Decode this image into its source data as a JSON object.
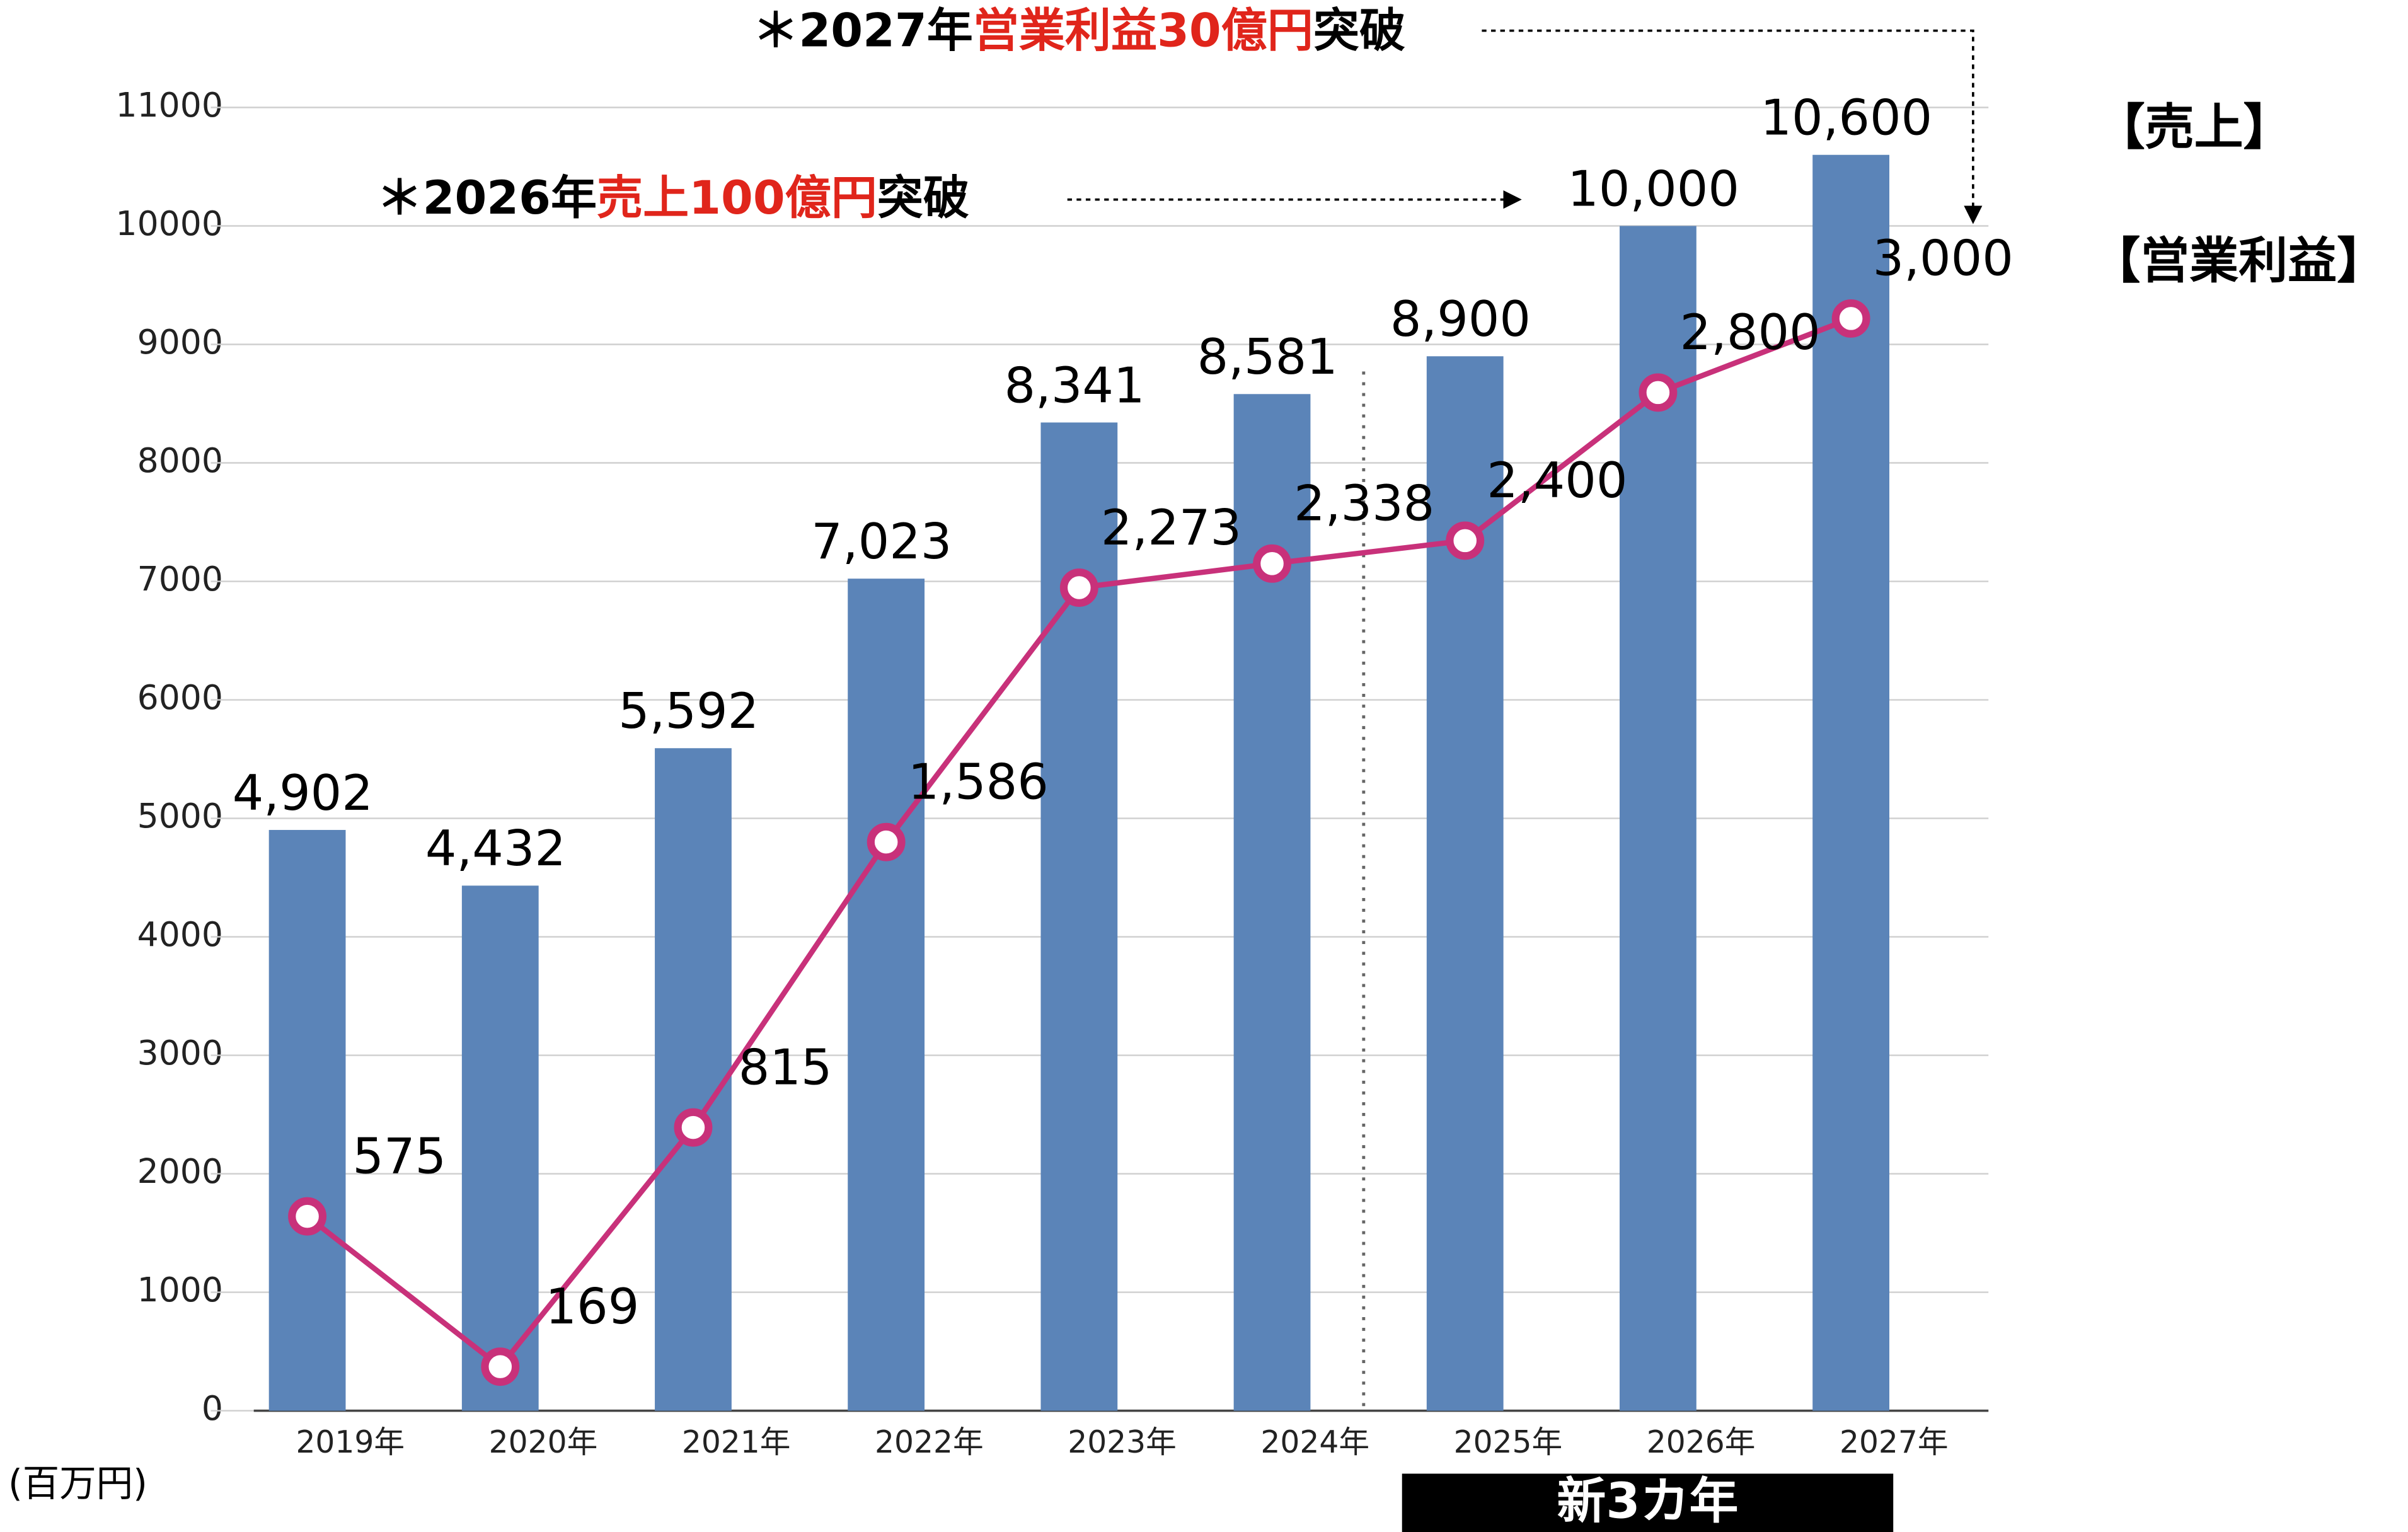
{
  "chart_data": {
    "type": "bar",
    "categories": [
      "2019年",
      "2020年",
      "2021年",
      "2022年",
      "2023年",
      "2024年",
      "2025年",
      "2026年",
      "2027年"
    ],
    "series": [
      {
        "name": "【売上】",
        "type": "bar",
        "color": "#5b84b8",
        "values": [
          4902,
          4432,
          5592,
          7023,
          8341,
          8581,
          8900,
          10000,
          10600
        ],
        "value_labels": [
          "4,902",
          "4,432",
          "5,592",
          "7,023",
          "8,341",
          "8,581",
          "8,900",
          "10,000",
          "10,600"
        ]
      },
      {
        "name": "【営業利益】",
        "type": "line",
        "axis": "y2",
        "color": "#c8317a",
        "values": [
          575,
          169,
          815,
          1586,
          2273,
          2338,
          2400,
          2800,
          3000
        ],
        "value_labels": [
          "575",
          "169",
          "815",
          "1,586",
          "2,273",
          "2,338",
          "2,400",
          "2,800",
          "3,000"
        ]
      }
    ],
    "ylim": [
      0,
      11000
    ],
    "yticks": [
      0,
      1000,
      2000,
      3000,
      4000,
      5000,
      6000,
      7000,
      8000,
      9000,
      10000,
      11000
    ],
    "y2lim": [
      50,
      3570
    ],
    "grid": true,
    "unit_label": "(百万円)",
    "period_label": "新3カ年",
    "annotations": [
      {
        "parts": [
          "＊2027年",
          "営業利益30億円",
          "突破"
        ]
      },
      {
        "parts": [
          "＊2026年",
          "売上100億円",
          "突破"
        ]
      }
    ]
  }
}
